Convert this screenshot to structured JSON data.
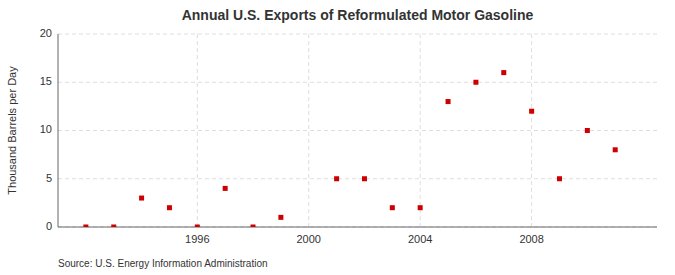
{
  "chart_data": {
    "type": "scatter",
    "title": "Annual U.S. Exports of Reformulated Motor Gasoline",
    "y_label": "Thousand Barrels per Day",
    "annotation": "Source: U.S. Energy Information Administration",
    "x": [
      1992,
      1993,
      1994,
      1995,
      1996,
      1997,
      1998,
      1999,
      2001,
      2002,
      2003,
      2004,
      2005,
      2006,
      2007,
      2008,
      2009,
      2010,
      2011
    ],
    "values": [
      0,
      0,
      3,
      2,
      0,
      4,
      0,
      1,
      5,
      5,
      2,
      2,
      13,
      15,
      16,
      12,
      5,
      10,
      8
    ],
    "color": "#cc0000",
    "marker": "square",
    "xlim": [
      1991,
      2012.5
    ],
    "ylim": [
      0,
      20
    ],
    "xticks": [
      1996,
      2000,
      2004,
      2008
    ],
    "yticks": [
      0,
      5,
      10,
      15,
      20
    ],
    "grid": true
  }
}
